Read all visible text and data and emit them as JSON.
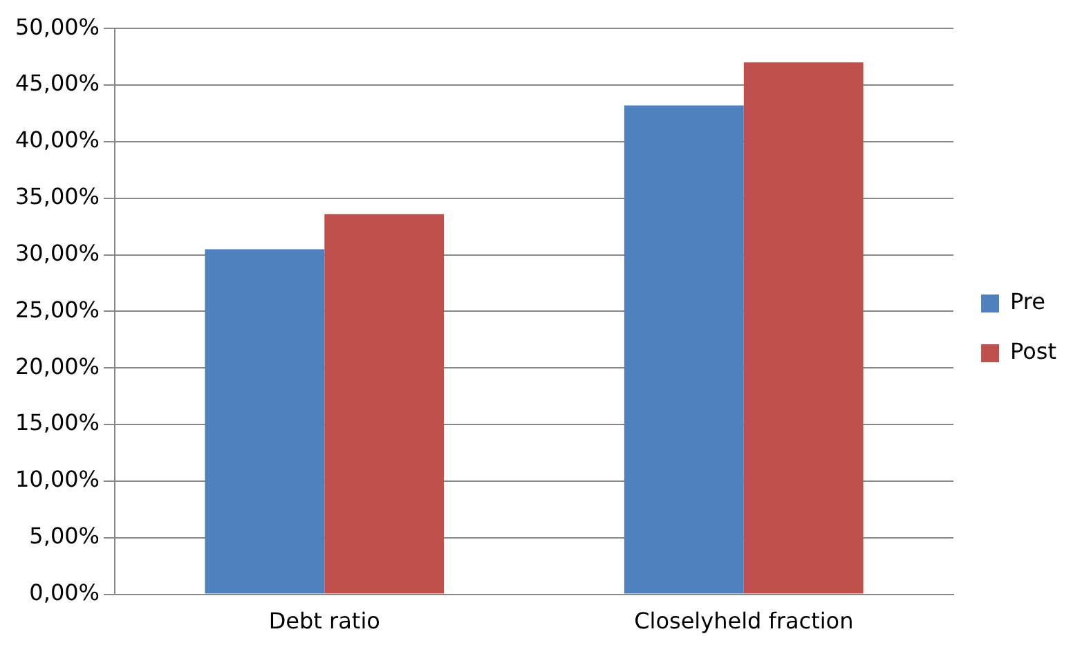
{
  "chart_data": {
    "type": "bar",
    "categories": [
      "Debt ratio",
      "Closelyheld fraction"
    ],
    "series": [
      {
        "name": "Pre",
        "color": "#4f81bd",
        "values": [
          30.5,
          43.2
        ]
      },
      {
        "name": "Post",
        "color": "#c0504d",
        "values": [
          33.6,
          47.0
        ]
      }
    ],
    "ylim": [
      0,
      50
    ],
    "yticks": [
      {
        "value": 0,
        "label": "0,00%"
      },
      {
        "value": 5,
        "label": "5,00%"
      },
      {
        "value": 10,
        "label": "10,00%"
      },
      {
        "value": 15,
        "label": "15,00%"
      },
      {
        "value": 20,
        "label": "20,00%"
      },
      {
        "value": 25,
        "label": "25,00%"
      },
      {
        "value": 30,
        "label": "30,00%"
      },
      {
        "value": 35,
        "label": "35,00%"
      },
      {
        "value": 40,
        "label": "40,00%"
      },
      {
        "value": 45,
        "label": "45,00%"
      },
      {
        "value": 50,
        "label": "50,00%"
      }
    ],
    "grid": "y",
    "legend": "right"
  }
}
